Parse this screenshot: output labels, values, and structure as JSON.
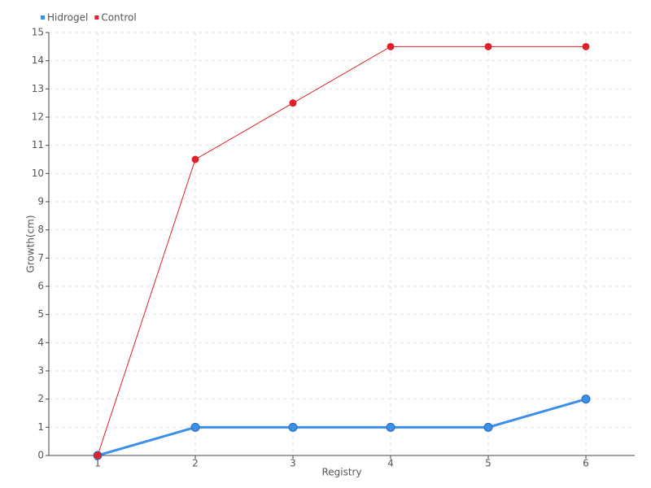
{
  "chart_data": {
    "type": "line",
    "x": [
      1,
      2,
      3,
      4,
      5,
      6
    ],
    "xlim": [
      0.5,
      6.5
    ],
    "xticks": [
      1,
      2,
      3,
      4,
      5,
      6
    ],
    "ylim": [
      0,
      15
    ],
    "yticks": [
      0,
      1,
      2,
      3,
      4,
      5,
      6,
      7,
      8,
      9,
      10,
      11,
      12,
      13,
      14,
      15
    ],
    "x_label": "Registry",
    "y_label": "Growth(cm)",
    "grid": true,
    "legend": "top-left",
    "series": [
      {
        "name": "Hidrogel",
        "color": "#3c8fe8",
        "values": [
          0,
          1,
          1,
          1,
          1,
          2
        ]
      },
      {
        "name": "Control",
        "color": "#e0202a",
        "values": [
          0,
          10.5,
          12.5,
          14.5,
          14.5,
          14.5
        ]
      }
    ]
  }
}
